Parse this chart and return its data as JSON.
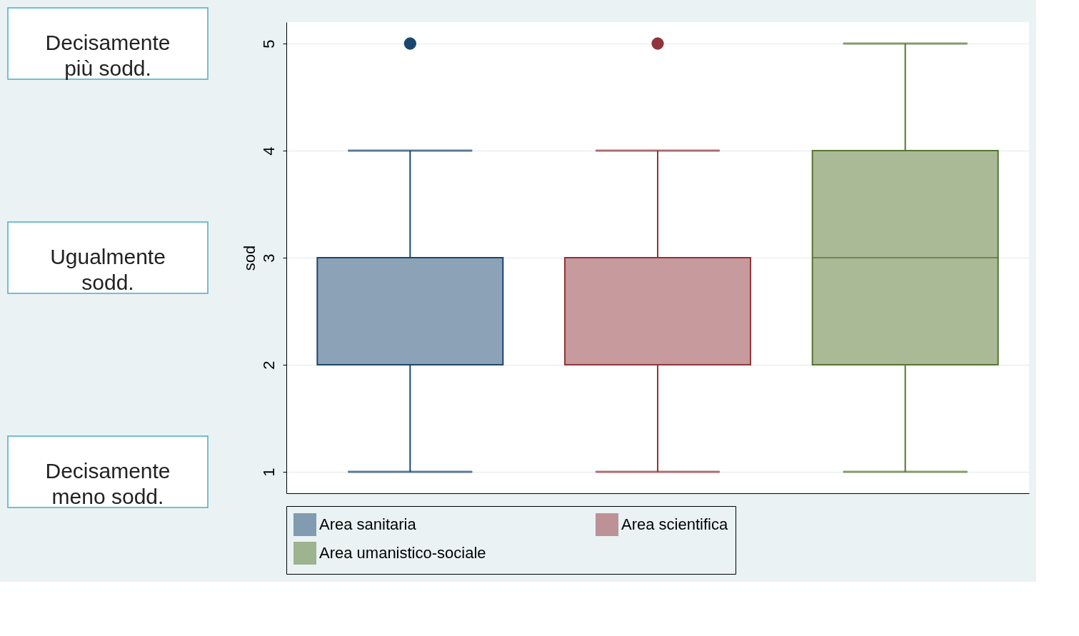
{
  "chart_data": {
    "type": "box",
    "ylabel": "sod",
    "categories": [
      null,
      null,
      null
    ],
    "series": [
      {
        "name": "Area sanitaria",
        "color": "#1a476f",
        "boxes": [
          {
            "low": 1,
            "q1": 2,
            "median": 2,
            "q3": 3,
            "high": 4,
            "outliers": [
              5
            ]
          },
          null,
          null
        ]
      },
      {
        "name": "Area scientifica",
        "color": "#90353b",
        "boxes": [
          null,
          {
            "low": 1,
            "q1": 2,
            "median": 3,
            "q3": 3,
            "high": 4,
            "outliers": [
              5
            ]
          },
          null
        ]
      },
      {
        "name": "Area umanistico-sociale",
        "color": "#55752f",
        "boxes": [
          null,
          null,
          {
            "low": 1,
            "q1": 2,
            "median": 3,
            "q3": 4,
            "high": 5
          }
        ]
      }
    ],
    "ylim": [
      0.8,
      5.2
    ],
    "yticks": [
      1,
      2,
      3,
      4,
      5
    ],
    "grid": "y",
    "legend": "bottom",
    "tick_labels": "y",
    "annotations": [
      "Decisamente più sodd.",
      "Ugualmente sodd.",
      "Decisamente meno sodd."
    ]
  }
}
